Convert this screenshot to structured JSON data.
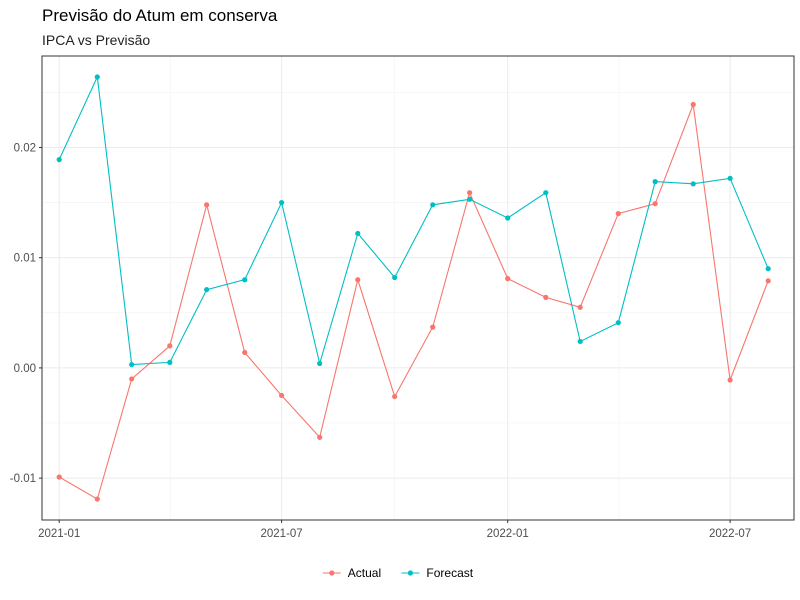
{
  "chart_data": {
    "type": "line",
    "title": "Previsão do Atum em conserva",
    "subtitle": "IPCA vs Previsão",
    "xlabel": "",
    "ylabel": "",
    "x_ticks": [
      "2021-01",
      "2021-07",
      "2022-01",
      "2022-07"
    ],
    "y_ticks": [
      -0.01,
      0.0,
      0.01,
      0.02
    ],
    "y_tick_labels": [
      "-0.01",
      "0.00",
      "0.01",
      "0.02"
    ],
    "xlim": [
      "2020-12-18",
      "2022-08-22"
    ],
    "ylim": [
      -0.0138,
      0.0283
    ],
    "x": [
      "2021-01",
      "2021-02",
      "2021-03",
      "2021-04",
      "2021-05",
      "2021-06",
      "2021-07",
      "2021-08",
      "2021-09",
      "2021-10",
      "2021-11",
      "2021-12",
      "2022-01",
      "2022-02",
      "2022-03",
      "2022-04",
      "2022-05",
      "2022-06",
      "2022-07",
      "2022-08"
    ],
    "series": [
      {
        "name": "Actual",
        "color": "#F8766D",
        "values": [
          -0.0099,
          -0.0119,
          -0.001,
          0.002,
          0.0148,
          0.0014,
          -0.0025,
          -0.0063,
          0.008,
          -0.0026,
          0.0037,
          0.0159,
          0.0081,
          0.0064,
          0.0055,
          0.014,
          0.0149,
          0.0239,
          -0.0011,
          0.0079
        ]
      },
      {
        "name": "Forecast",
        "color": "#00BFC4",
        "values": [
          0.0189,
          0.0264,
          0.0003,
          0.0005,
          0.0071,
          0.008,
          0.015,
          0.0004,
          0.0122,
          0.0082,
          0.0148,
          0.0153,
          0.0136,
          0.0159,
          0.0024,
          0.0041,
          0.0169,
          0.0167,
          0.0172,
          0.009
        ]
      }
    ],
    "legend_position": "bottom",
    "grid": true
  }
}
